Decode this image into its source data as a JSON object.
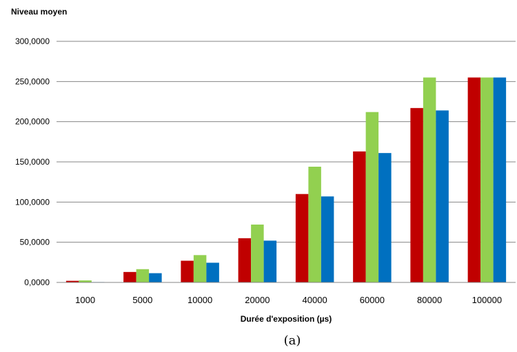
{
  "chart_data": {
    "type": "bar",
    "ylabel": "Niveau moyen",
    "xlabel": "Durée d'exposition (µs)",
    "caption": "(a)",
    "categories": [
      "1000",
      "5000",
      "10000",
      "20000",
      "40000",
      "60000",
      "80000",
      "100000"
    ],
    "ylim": [
      0,
      300
    ],
    "yticks": [
      "0,0000",
      "50,0000",
      "100,0000",
      "150,0000",
      "200,0000",
      "250,0000",
      "300,0000"
    ],
    "grid": true,
    "series": [
      {
        "color": "#C00000",
        "values": [
          2,
          13,
          27,
          55,
          110,
          163,
          217,
          255
        ]
      },
      {
        "color": "#92D050",
        "values": [
          2.5,
          16.5,
          34,
          72,
          144,
          212,
          255,
          255
        ]
      },
      {
        "color": "#0070C0",
        "values": [
          0.5,
          11.5,
          24.5,
          52,
          107,
          161,
          214,
          255
        ]
      }
    ]
  }
}
